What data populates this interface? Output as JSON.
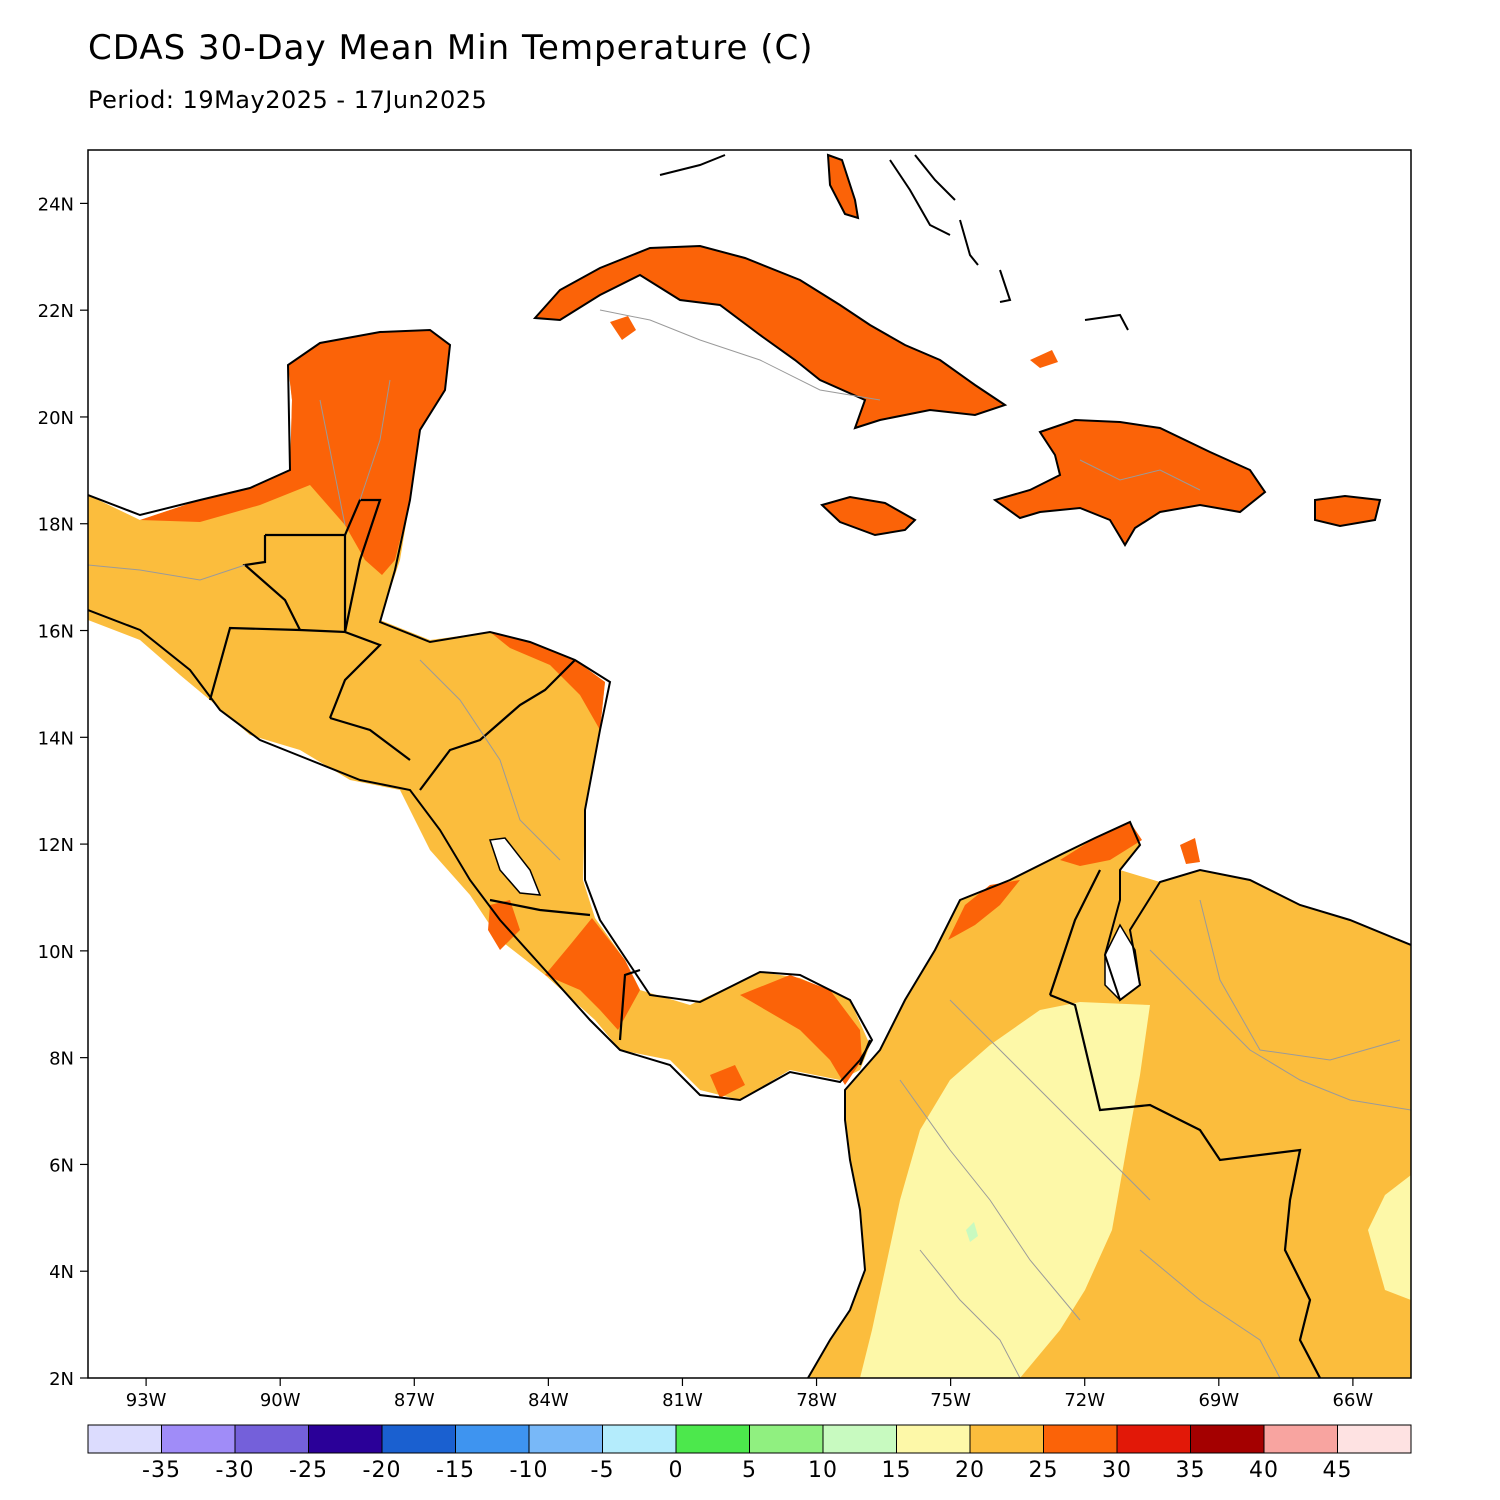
{
  "header": {
    "title": "CDAS 30-Day Mean Min Temperature (C)",
    "period": "Period: 19May2025 - 17Jun2025"
  },
  "map": {
    "lon_range": [
      -94.3,
      -64.7
    ],
    "lat_range": [
      2,
      25
    ],
    "lat_ticks": [
      {
        "value": 24,
        "label": "24N"
      },
      {
        "value": 22,
        "label": "22N"
      },
      {
        "value": 20,
        "label": "20N"
      },
      {
        "value": 18,
        "label": "18N"
      },
      {
        "value": 16,
        "label": "16N"
      },
      {
        "value": 14,
        "label": "14N"
      },
      {
        "value": 12,
        "label": "12N"
      },
      {
        "value": 10,
        "label": "10N"
      },
      {
        "value": 8,
        "label": "8N"
      },
      {
        "value": 6,
        "label": "6N"
      },
      {
        "value": 4,
        "label": "4N"
      },
      {
        "value": 2,
        "label": "2N"
      }
    ],
    "lon_ticks": [
      {
        "value": -93,
        "label": "93W"
      },
      {
        "value": -90,
        "label": "90W"
      },
      {
        "value": -87,
        "label": "87W"
      },
      {
        "value": -84,
        "label": "84W"
      },
      {
        "value": -81,
        "label": "81W"
      },
      {
        "value": -78,
        "label": "78W"
      },
      {
        "value": -75,
        "label": "75W"
      },
      {
        "value": -72,
        "label": "72W"
      },
      {
        "value": -69,
        "label": "69W"
      },
      {
        "value": -66,
        "label": "66W"
      }
    ],
    "fill_colors": {
      "20-25": "#fdf8a8",
      "25-30": "#fbbd3d",
      "30-35": "#fb6308"
    }
  },
  "legend": {
    "colors": [
      "#dcdcfe",
      "#a08cf8",
      "#7460da",
      "#2a0098",
      "#1a60d0",
      "#3e94f0",
      "#78b8f8",
      "#b4ecfc",
      "#4ce84c",
      "#90f080",
      "#c8fac0",
      "#fdf8a8",
      "#fbbd3d",
      "#fb6308",
      "#e21808",
      "#a40000",
      "#f8a4a0",
      "#fee2e2"
    ],
    "labels": [
      "-35",
      "-30",
      "-25",
      "-20",
      "-15",
      "-10",
      "-5",
      "0",
      "5",
      "10",
      "15",
      "20",
      "25",
      "30",
      "35",
      "40",
      "45"
    ]
  }
}
